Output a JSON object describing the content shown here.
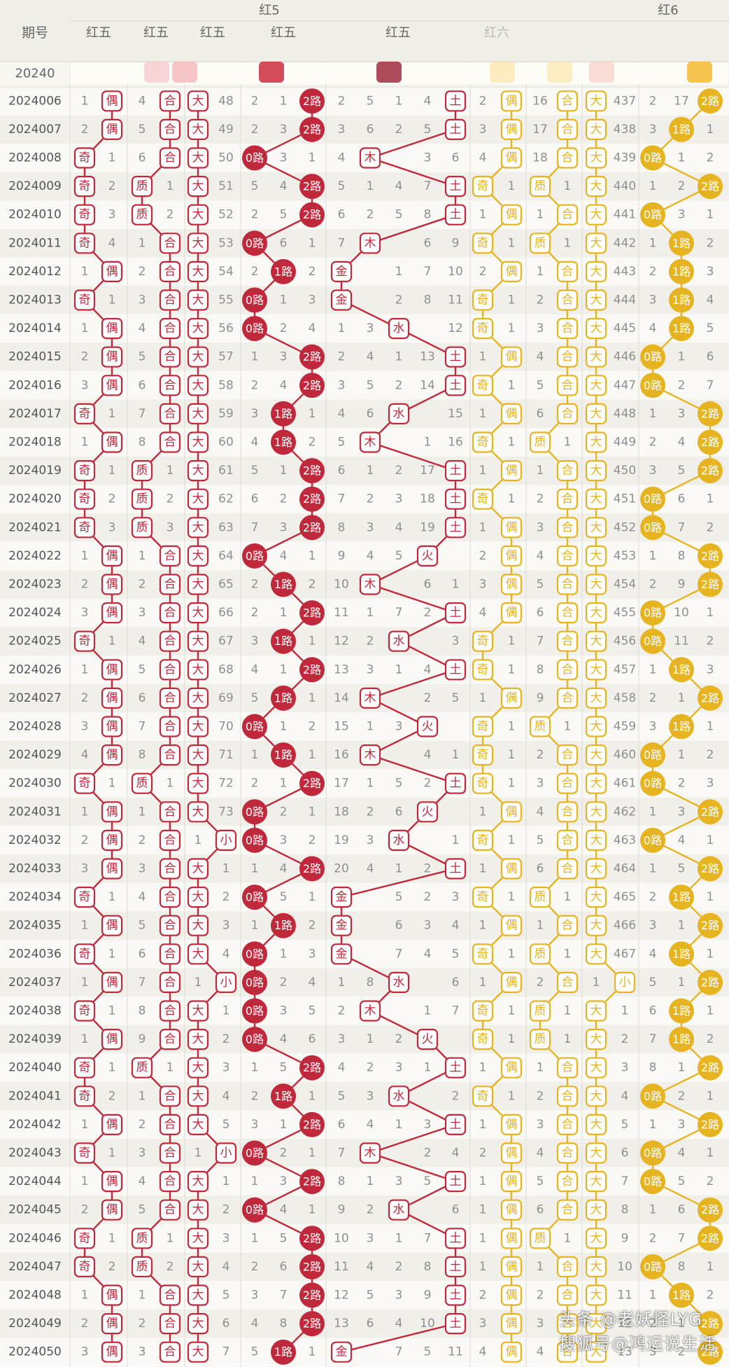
{
  "header": {
    "period_label": "期号",
    "top_groups": [
      "红5",
      "红6"
    ],
    "sub_labels": [
      "红五",
      "红五",
      "红五",
      "红五",
      "红五",
      "红六"
    ]
  },
  "colors": {
    "red": "#c0293b",
    "yellow": "#e7b421"
  },
  "chart_data": {
    "type": "table",
    "first_row_partial": "20240",
    "periods": [
      "2024006",
      "2024007",
      "2024008",
      "2024009",
      "2024010",
      "2024011",
      "2024012",
      "2024013",
      "2024014",
      "2024015",
      "2024016",
      "2024017",
      "2024018",
      "2024019",
      "2024020",
      "2024021",
      "2024022",
      "2024023",
      "2024024",
      "2024025",
      "2024026",
      "2024027",
      "2024028",
      "2024029",
      "2024030",
      "2024031",
      "2024032",
      "2024033",
      "2024034",
      "2024035",
      "2024036",
      "2024037",
      "2024038",
      "2024039",
      "2024040",
      "2024041",
      "2024042",
      "2024043",
      "2024044",
      "2024045",
      "2024046",
      "2024047",
      "2024048",
      "2024049",
      "2024050"
    ],
    "odd_even": [
      "偶",
      "偶",
      "奇",
      "奇",
      "奇",
      "奇",
      "偶",
      "奇",
      "偶",
      "偶",
      "偶",
      "奇",
      "偶",
      "奇",
      "奇",
      "奇",
      "偶",
      "偶",
      "偶",
      "奇",
      "偶",
      "偶",
      "偶",
      "偶",
      "奇",
      "偶",
      "偶",
      "偶",
      "奇",
      "偶",
      "奇",
      "偶",
      "奇",
      "偶",
      "奇",
      "奇",
      "偶",
      "奇",
      "偶",
      "偶",
      "奇",
      "奇",
      "偶",
      "偶",
      "偶"
    ],
    "prime_composite": [
      "合",
      "合",
      "合",
      "质",
      "质",
      "合",
      "合",
      "合",
      "合",
      "合",
      "合",
      "合",
      "合",
      "质",
      "质",
      "质",
      "合",
      "合",
      "合",
      "合",
      "合",
      "合",
      "合",
      "合",
      "质",
      "合",
      "合",
      "合",
      "合",
      "合",
      "合",
      "合",
      "合",
      "合",
      "质",
      "合",
      "合",
      "合",
      "合",
      "合",
      "质",
      "质",
      "合",
      "合",
      "合"
    ],
    "big_small": [
      "大",
      "大",
      "大",
      "大",
      "大",
      "大",
      "大",
      "大",
      "大",
      "大",
      "大",
      "大",
      "大",
      "大",
      "大",
      "大",
      "大",
      "大",
      "大",
      "大",
      "大",
      "大",
      "大",
      "大",
      "大",
      "大",
      "小",
      "大",
      "大",
      "大",
      "大",
      "小",
      "大",
      "大",
      "大",
      "大",
      "大",
      "小",
      "大",
      "大",
      "大",
      "大",
      "大",
      "大",
      "大"
    ],
    "road": [
      "2路",
      "2路",
      "0路",
      "2路",
      "2路",
      "0路",
      "1路",
      "0路",
      "0路",
      "2路",
      "2路",
      "1路",
      "1路",
      "2路",
      "2路",
      "2路",
      "0路",
      "1路",
      "2路",
      "1路",
      "2路",
      "1路",
      "0路",
      "1路",
      "2路",
      "0路",
      "0路",
      "2路",
      "0路",
      "1路",
      "0路",
      "0路",
      "0路",
      "0路",
      "2路",
      "1路",
      "2路",
      "0路",
      "2路",
      "0路",
      "2路",
      "2路",
      "2路",
      "2路",
      "1路"
    ],
    "element": [
      "土",
      "土",
      "木",
      "土",
      "土",
      "木",
      "金",
      "金",
      "水",
      "土",
      "土",
      "水",
      "木",
      "土",
      "土",
      "土",
      "火",
      "木",
      "土",
      "水",
      "土",
      "木",
      "火",
      "木",
      "土",
      "火",
      "水",
      "土",
      "金",
      "金",
      "金",
      "水",
      "木",
      "火",
      "土",
      "水",
      "土",
      "木",
      "土",
      "水",
      "土",
      "土",
      "土",
      "土",
      "金"
    ],
    "r6_odd_even": [
      "偶",
      "偶",
      "偶",
      "奇",
      "偶",
      "奇",
      "偶",
      "奇",
      "奇",
      "偶",
      "奇",
      "偶",
      "奇",
      "偶",
      "奇",
      "偶",
      "偶",
      "偶",
      "偶",
      "奇",
      "奇",
      "偶",
      "奇",
      "奇",
      "奇",
      "偶",
      "奇",
      "偶",
      "奇",
      "偶",
      "奇",
      "偶",
      "奇",
      "奇",
      "偶",
      "奇",
      "偶",
      "偶",
      "偶",
      "偶",
      "偶",
      "偶",
      "偶",
      "偶",
      "偶"
    ],
    "r6_prime_composite": [
      "合",
      "合",
      "合",
      "质",
      "合",
      "质",
      "合",
      "合",
      "合",
      "合",
      "合",
      "合",
      "质",
      "合",
      "合",
      "合",
      "合",
      "合",
      "合",
      "合",
      "合",
      "合",
      "质",
      "合",
      "合",
      "合",
      "合",
      "合",
      "质",
      "合",
      "质",
      "合",
      "质",
      "质",
      "合",
      "合",
      "合",
      "合",
      "合",
      "合",
      "质",
      "合",
      "合",
      "合",
      "合"
    ],
    "r6_big_small": [
      "大",
      "大",
      "大",
      "大",
      "大",
      "大",
      "大",
      "大",
      "大",
      "大",
      "大",
      "大",
      "大",
      "大",
      "大",
      "大",
      "大",
      "大",
      "大",
      "大",
      "大",
      "大",
      "大",
      "大",
      "大",
      "大",
      "大",
      "大",
      "大",
      "大",
      "大",
      "小",
      "大",
      "大",
      "大",
      "大",
      "大",
      "大",
      "大",
      "大",
      "大",
      "大",
      "大",
      "大",
      "大"
    ],
    "r6_road": [
      "2路",
      "1路",
      "0路",
      "2路",
      "0路",
      "1路",
      "1路",
      "1路",
      "1路",
      "0路",
      "0路",
      "2路",
      "2路",
      "2路",
      "0路",
      "0路",
      "2路",
      "2路",
      "0路",
      "0路",
      "1路",
      "2路",
      "1路",
      "0路",
      "0路",
      "2路",
      "0路",
      "2路",
      "1路",
      "2路",
      "1路",
      "2路",
      "1路",
      "1路",
      "2路",
      "0路",
      "2路",
      "0路",
      "0路",
      "2路",
      "2路",
      "0路",
      "1路",
      "2路",
      "2路"
    ],
    "r5_odd_even_miss": [
      "1",
      "2",
      "1",
      "2",
      "3",
      "4",
      "1",
      "1",
      "1",
      "2",
      "3",
      "1",
      "1",
      "1",
      "2",
      "3",
      "1",
      "2",
      "3",
      "1",
      "1",
      "2",
      "3",
      "4",
      "1",
      "1",
      "2",
      "3",
      "1",
      "1",
      "1",
      "1",
      "1",
      "1",
      "1",
      "2",
      "1",
      "1",
      "1",
      "2",
      "1",
      "2",
      "1",
      "2",
      "3"
    ],
    "r5_prime_miss": [
      "4",
      "5",
      "6",
      "1",
      "2",
      "1",
      "2",
      "3",
      "4",
      "5",
      "6",
      "7",
      "8",
      "1",
      "2",
      "3",
      "1",
      "2",
      "3",
      "4",
      "5",
      "6",
      "7",
      "8",
      "1",
      "1",
      "2",
      "3",
      "4",
      "5",
      "6",
      "7",
      "8",
      "9",
      "1",
      "1",
      "2",
      "3",
      "4",
      "5",
      "1",
      "2",
      "1",
      "2",
      "3"
    ],
    "r5_big_miss": [
      "48",
      "49",
      "50",
      "51",
      "52",
      "53",
      "54",
      "55",
      "56",
      "57",
      "58",
      "59",
      "60",
      "61",
      "62",
      "63",
      "64",
      "65",
      "66",
      "67",
      "68",
      "69",
      "70",
      "71",
      "72",
      "73",
      "1",
      "1",
      "2",
      "3",
      "4",
      "1",
      "1",
      "2",
      "3",
      "4",
      "5",
      "1",
      "1",
      "2",
      "3",
      "4",
      "5",
      "6",
      "7"
    ],
    "r5_road_miss_a": [
      "2",
      "2",
      "",
      "5",
      "2",
      "",
      "2",
      "",
      "",
      "1",
      "2",
      "3",
      "4",
      "5",
      "6",
      "7",
      "",
      "2",
      "2",
      "3",
      "4",
      "5",
      "",
      "1",
      "2",
      "",
      "",
      "1",
      "",
      "1",
      "",
      "",
      "",
      "",
      "1",
      "2",
      "3",
      "",
      "1",
      "",
      "1",
      "2",
      "3",
      "4",
      "5"
    ],
    "r5_road_miss_b": [
      "1",
      "3",
      "3",
      "4",
      "5",
      "6",
      "",
      "1",
      "2",
      "3",
      "4",
      "",
      "",
      "1",
      "2",
      "3",
      "4",
      "",
      "1",
      "",
      "1",
      "",
      "1",
      "",
      "1",
      "2",
      "3",
      "4",
      "5",
      "",
      "1",
      "2",
      "3",
      "4",
      "5",
      "",
      "1",
      "2",
      "3",
      "4",
      "5",
      "6",
      "7",
      "8",
      ""
    ],
    "r5_road_miss_c": [
      "",
      "",
      "1",
      "",
      "",
      "1",
      "2",
      "3",
      "4",
      "",
      "",
      "1",
      "2",
      "",
      "",
      "",
      "1",
      "2",
      "",
      "1",
      "",
      "1",
      "2",
      "1",
      "",
      "1",
      "2",
      "",
      "1",
      "2",
      "3",
      "4",
      "5",
      "6",
      "",
      "1",
      "",
      "1",
      "",
      "1",
      "",
      "",
      "",
      "",
      "1"
    ],
    "r5_element_miss": [
      [
        "2",
        "5",
        "1",
        "4"
      ],
      [
        "3",
        "6",
        "2",
        "5"
      ],
      [
        "4",
        "",
        "3",
        "6"
      ],
      [
        "5",
        "1",
        "4",
        "7"
      ],
      [
        "6",
        "2",
        "5",
        "8"
      ],
      [
        "7",
        "",
        "6",
        "9"
      ],
      [
        "",
        "1",
        "7",
        "10"
      ],
      [
        "",
        "2",
        "8",
        "11"
      ],
      [
        "1",
        "3",
        "",
        "12"
      ],
      [
        "2",
        "4",
        "1",
        "13"
      ],
      [
        "3",
        "5",
        "2",
        "14"
      ],
      [
        "4",
        "6",
        "",
        "15"
      ],
      [
        "5",
        "",
        "1",
        "16"
      ],
      [
        "6",
        "1",
        "2",
        "17"
      ],
      [
        "7",
        "2",
        "3",
        "18"
      ],
      [
        "8",
        "3",
        "4",
        "19"
      ],
      [
        "9",
        "4",
        "5",
        ""
      ],
      [
        "10",
        "",
        "6",
        "1"
      ],
      [
        "11",
        "1",
        "7",
        "2"
      ],
      [
        "12",
        "2",
        "",
        "3"
      ],
      [
        "13",
        "3",
        "1",
        "4"
      ],
      [
        "14",
        "",
        "2",
        "5"
      ],
      [
        "15",
        "1",
        "3",
        ""
      ],
      [
        "16",
        "",
        "4",
        "1"
      ],
      [
        "17",
        "1",
        "5",
        "2"
      ],
      [
        "18",
        "2",
        "6",
        ""
      ],
      [
        "19",
        "3",
        "",
        "1"
      ],
      [
        "20",
        "4",
        "1",
        "2"
      ],
      [
        "",
        "5",
        "2",
        "3"
      ],
      [
        "",
        "6",
        "3",
        "4"
      ],
      [
        "",
        "7",
        "4",
        "5"
      ],
      [
        "1",
        "8",
        "",
        "6"
      ],
      [
        "2",
        "",
        "1",
        "7"
      ],
      [
        "3",
        "1",
        "2",
        ""
      ],
      [
        "4",
        "2",
        "3",
        "1"
      ],
      [
        "5",
        "3",
        "",
        "2"
      ],
      [
        "6",
        "4",
        "1",
        "3"
      ],
      [
        "7",
        "",
        "2",
        "4"
      ],
      [
        "8",
        "1",
        "3",
        "5"
      ],
      [
        "9",
        "2",
        "",
        "6"
      ],
      [
        "10",
        "3",
        "1",
        "7"
      ],
      [
        "11",
        "4",
        "2",
        "8"
      ],
      [
        "12",
        "5",
        "3",
        "9"
      ],
      [
        "13",
        "6",
        "4",
        "10"
      ],
      [
        "",
        "7",
        "5",
        "11"
      ]
    ],
    "r6_odd_even_miss": [
      "2",
      "3",
      "4",
      "1",
      "1",
      "1",
      "2",
      "1",
      "1",
      "1",
      "1",
      "1",
      "1",
      "1",
      "1",
      "1",
      "2",
      "3",
      "4",
      "1",
      "1",
      "1",
      "1",
      "1",
      "1",
      "1",
      "1",
      "1",
      "1",
      "1",
      "1",
      "1",
      "1",
      "1",
      "1",
      "1",
      "1",
      "2",
      "1",
      "1",
      "1",
      "1",
      "2",
      "3",
      "4"
    ],
    "r6_prime_miss": [
      "16",
      "17",
      "18",
      "1",
      "1",
      "1",
      "1",
      "2",
      "3",
      "4",
      "5",
      "6",
      "1",
      "1",
      "2",
      "3",
      "4",
      "5",
      "6",
      "7",
      "8",
      "9",
      "1",
      "2",
      "3",
      "4",
      "5",
      "6",
      "1",
      "1",
      "1",
      "2",
      "1",
      "1",
      "1",
      "2",
      "3",
      "4",
      "5",
      "6",
      "1",
      "1",
      "2",
      "3",
      "4"
    ],
    "r6_big_miss": [
      "437",
      "438",
      "439",
      "440",
      "441",
      "442",
      "443",
      "444",
      "445",
      "446",
      "447",
      "448",
      "449",
      "450",
      "451",
      "452",
      "453",
      "454",
      "455",
      "456",
      "457",
      "458",
      "459",
      "460",
      "461",
      "462",
      "463",
      "464",
      "465",
      "466",
      "467",
      "1",
      "1",
      "2",
      "3",
      "4",
      "5",
      "6",
      "7",
      "8",
      "9",
      "10",
      "11",
      "12",
      "13"
    ],
    "r6_road_miss_a": [
      "2",
      "3",
      "",
      "1",
      "",
      "1",
      "2",
      "3",
      "4",
      "",
      "",
      "1",
      "2",
      "3",
      "",
      "",
      "1",
      "2",
      "",
      "",
      "1",
      "2",
      "3",
      "",
      "",
      "1",
      "",
      "1",
      "2",
      "3",
      "4",
      "5",
      "6",
      "7",
      "8",
      "",
      "1",
      "",
      "",
      "1",
      "2",
      "",
      "1",
      "2",
      "3"
    ],
    "r6_road_miss_b": [
      "17",
      "",
      "1",
      "2",
      "3",
      "",
      "",
      "",
      "",
      "1",
      "2",
      "3",
      "4",
      "5",
      "6",
      "7",
      "8",
      "9",
      "10",
      "11",
      "",
      "1",
      "",
      "1",
      "2",
      "3",
      "4",
      "5",
      "",
      "1",
      "",
      "1",
      "",
      "",
      "1",
      "2",
      "3",
      "4",
      "5",
      "6",
      "7",
      "8",
      "",
      "1",
      "2"
    ],
    "r6_road_miss_c": [
      "",
      "1",
      "2",
      "",
      "1",
      "2",
      "3",
      "4",
      "5",
      "6",
      "7",
      "",
      "",
      "",
      "1",
      "2",
      "",
      "",
      "1",
      "2",
      "3",
      "",
      "1",
      "2",
      "3",
      "",
      "1",
      "",
      "1",
      "",
      "1",
      "",
      "1",
      "2",
      "",
      "1",
      "",
      "1",
      "2",
      "",
      "",
      "1",
      "2",
      ""
    ]
  },
  "watermark": {
    "line1": "头条 @老妖怪LYG",
    "line2": "搜狐号@鸿运说生活"
  }
}
